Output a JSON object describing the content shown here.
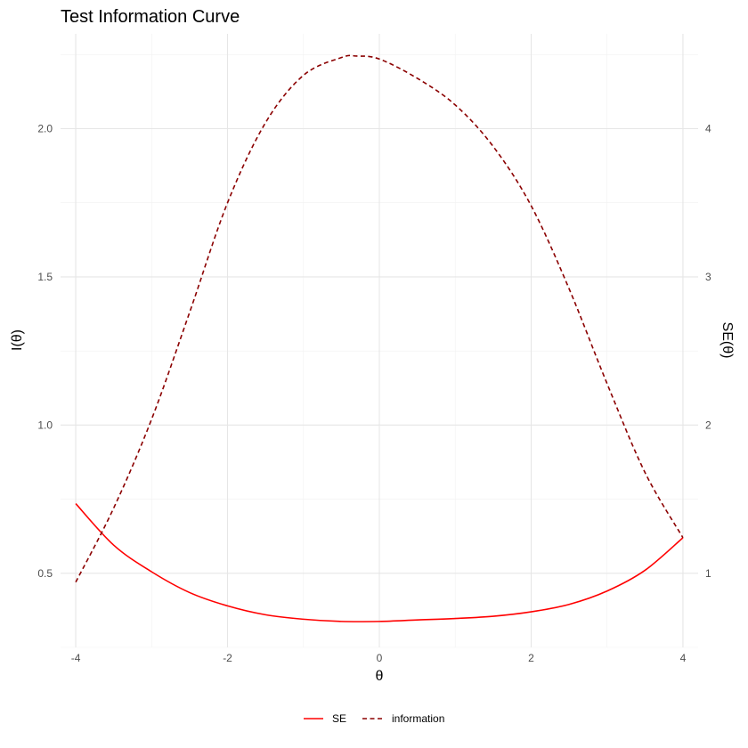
{
  "chart_data": {
    "type": "line",
    "title": "Test Information Curve",
    "xlabel": "θ",
    "ylabel": "I(θ)",
    "y2label": "SE(θ)",
    "xlim": [
      -4.2,
      4.2
    ],
    "ylim": [
      0.25,
      2.32
    ],
    "y2lim": [
      0.5,
      4.64
    ],
    "x_ticks": [
      -4,
      -2,
      0,
      2,
      4
    ],
    "x_tick_labels": [
      "-4",
      "-2",
      "0",
      "2",
      "4"
    ],
    "y_ticks": [
      0.5,
      1.0,
      1.5,
      2.0
    ],
    "y_tick_labels": [
      "0.5",
      "1.0",
      "1.5",
      "2.0"
    ],
    "y2_ticks": [
      1,
      2,
      3,
      4
    ],
    "y2_tick_labels": [
      "1",
      "2",
      "3",
      "4"
    ],
    "legend_position": "bottom",
    "series": [
      {
        "name": "SE",
        "axis": "right",
        "color": "#ff0000",
        "linestyle": "solid",
        "x": [
          -4,
          -3.5,
          -3,
          -2.5,
          -2,
          -1.5,
          -1,
          -0.5,
          0,
          0.5,
          1,
          1.5,
          2,
          2.5,
          3,
          3.5,
          4
        ],
        "y": [
          1.47,
          1.19,
          1.01,
          0.87,
          0.78,
          0.72,
          0.69,
          0.675,
          0.675,
          0.685,
          0.695,
          0.71,
          0.74,
          0.79,
          0.88,
          1.02,
          1.24
        ]
      },
      {
        "name": "information",
        "axis": "left",
        "color": "#8b0000",
        "linestyle": "dashed",
        "x": [
          -4,
          -3.5,
          -3,
          -2.5,
          -2,
          -1.5,
          -1,
          -0.5,
          -0.3,
          0,
          0.5,
          1,
          1.5,
          2,
          2.5,
          3,
          3.5,
          4
        ],
        "y": [
          0.47,
          0.72,
          1.02,
          1.38,
          1.75,
          2.02,
          2.18,
          2.24,
          2.245,
          2.235,
          2.17,
          2.08,
          1.94,
          1.74,
          1.46,
          1.14,
          0.84,
          0.62
        ]
      }
    ]
  }
}
